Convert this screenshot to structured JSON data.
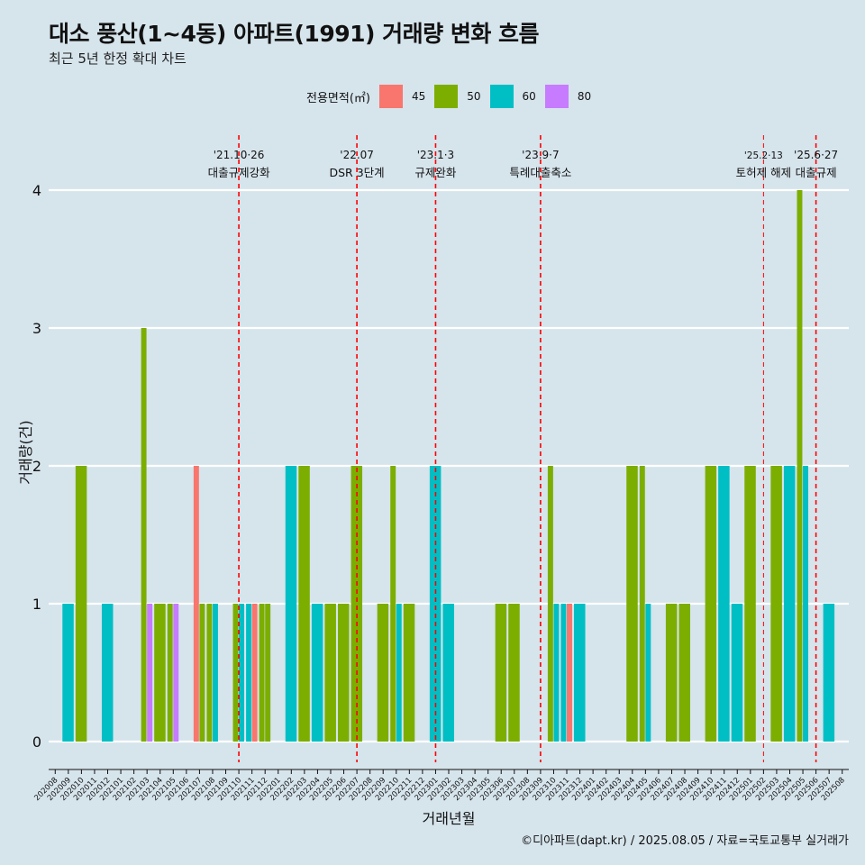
{
  "title": "대소 풍산(1~4동) 아파트(1991) 거래량 변화 흐름",
  "subtitle": "최근 5년 한정 확대 차트",
  "legend": {
    "title": "전용면적(㎡)",
    "items": [
      {
        "label": "45",
        "color": "#F8766D"
      },
      {
        "label": "50",
        "color": "#7CAE00"
      },
      {
        "label": "60",
        "color": "#00BFC4"
      },
      {
        "label": "80",
        "color": "#C77CFF"
      }
    ]
  },
  "caption": "©디아파트(dapt.kr) / 2025.08.05 / 자료=국토교통부 실거래가",
  "chart_data": {
    "type": "bar",
    "xlabel": "거래년월",
    "ylabel": "거래량(건)",
    "ylim": [
      0,
      4
    ],
    "yticks": [
      0,
      1,
      2,
      3,
      4
    ],
    "grid": true,
    "legend_position": "top",
    "categories": [
      "202008",
      "202009",
      "202010",
      "202011",
      "202012",
      "202101",
      "202102",
      "202103",
      "202104",
      "202105",
      "202106",
      "202107",
      "202108",
      "202109",
      "202110",
      "202111",
      "202112",
      "202201",
      "202202",
      "202203",
      "202204",
      "202205",
      "202206",
      "202207",
      "202208",
      "202209",
      "202210",
      "202211",
      "202212",
      "202301",
      "202302",
      "202303",
      "202304",
      "202305",
      "202306",
      "202307",
      "202308",
      "202309",
      "202310",
      "202311",
      "202312",
      "202401",
      "202402",
      "202403",
      "202404",
      "202405",
      "202406",
      "202407",
      "202408",
      "202409",
      "202410",
      "202411",
      "202412",
      "202501",
      "202502",
      "202503",
      "202504",
      "202505",
      "202506",
      "202507",
      "202508"
    ],
    "bars": [
      {
        "month": "202009",
        "area": "60",
        "value": 1
      },
      {
        "month": "202010",
        "area": "50",
        "value": 2
      },
      {
        "month": "202012",
        "area": "60",
        "value": 1
      },
      {
        "month": "202103",
        "area": "50",
        "value": 3
      },
      {
        "month": "202103",
        "area": "80",
        "value": 1
      },
      {
        "month": "202104",
        "area": "50",
        "value": 1
      },
      {
        "month": "202105",
        "area": "50",
        "value": 1
      },
      {
        "month": "202105",
        "area": "80",
        "value": 1
      },
      {
        "month": "202107",
        "area": "45",
        "value": 2
      },
      {
        "month": "202107",
        "area": "50",
        "value": 1
      },
      {
        "month": "202108",
        "area": "50",
        "value": 1
      },
      {
        "month": "202108",
        "area": "60",
        "value": 1
      },
      {
        "month": "202110",
        "area": "50",
        "value": 1
      },
      {
        "month": "202110",
        "area": "60",
        "value": 1
      },
      {
        "month": "202111",
        "area": "60",
        "value": 1
      },
      {
        "month": "202111",
        "area": "45",
        "value": 1
      },
      {
        "month": "202112",
        "area": "50",
        "value": 1
      },
      {
        "month": "202112",
        "area": "50",
        "value": 1
      },
      {
        "month": "202202",
        "area": "60",
        "value": 2
      },
      {
        "month": "202203",
        "area": "50",
        "value": 2
      },
      {
        "month": "202204",
        "area": "60",
        "value": 1
      },
      {
        "month": "202205",
        "area": "50",
        "value": 1
      },
      {
        "month": "202206",
        "area": "50",
        "value": 1
      },
      {
        "month": "202207",
        "area": "50",
        "value": 2
      },
      {
        "month": "202209",
        "area": "50",
        "value": 1
      },
      {
        "month": "202210",
        "area": "50",
        "value": 2
      },
      {
        "month": "202210",
        "area": "60",
        "value": 1
      },
      {
        "month": "202211",
        "area": "50",
        "value": 1
      },
      {
        "month": "202301",
        "area": "60",
        "value": 2
      },
      {
        "month": "202302",
        "area": "60",
        "value": 1
      },
      {
        "month": "202306",
        "area": "50",
        "value": 1
      },
      {
        "month": "202307",
        "area": "50",
        "value": 1
      },
      {
        "month": "202310",
        "area": "50",
        "value": 2
      },
      {
        "month": "202310",
        "area": "60",
        "value": 1
      },
      {
        "month": "202311",
        "area": "60",
        "value": 1
      },
      {
        "month": "202311",
        "area": "45",
        "value": 1
      },
      {
        "month": "202312",
        "area": "60",
        "value": 1
      },
      {
        "month": "202404",
        "area": "50",
        "value": 2
      },
      {
        "month": "202405",
        "area": "50",
        "value": 2
      },
      {
        "month": "202405",
        "area": "60",
        "value": 1
      },
      {
        "month": "202407",
        "area": "50",
        "value": 1
      },
      {
        "month": "202408",
        "area": "50",
        "value": 1
      },
      {
        "month": "202410",
        "area": "50",
        "value": 2
      },
      {
        "month": "202411",
        "area": "60",
        "value": 2
      },
      {
        "month": "202412",
        "area": "60",
        "value": 1
      },
      {
        "month": "202501",
        "area": "50",
        "value": 2
      },
      {
        "month": "202503",
        "area": "50",
        "value": 2
      },
      {
        "month": "202504",
        "area": "60",
        "value": 2
      },
      {
        "month": "202505",
        "area": "50",
        "value": 4
      },
      {
        "month": "202505",
        "area": "60",
        "value": 2
      },
      {
        "month": "202507",
        "area": "60",
        "value": 1
      }
    ],
    "annotations": [
      {
        "month": "202110",
        "date": "'21.10·26",
        "label": "대출규제강화",
        "style": "thick"
      },
      {
        "month": "202207",
        "date": "'22.07",
        "label": "DSR 3단계",
        "style": "thick"
      },
      {
        "month": "202301",
        "date": "'23.1·3",
        "label": "규제완화",
        "style": "thick"
      },
      {
        "month": "202309",
        "date": "'23.9·7",
        "label": "특례대출축소",
        "style": "thick"
      },
      {
        "month": "202502",
        "date": "'25.2·13",
        "label": "토허제 해제",
        "style": "thin"
      },
      {
        "month": "202506",
        "date": "'25.6·27",
        "label": "대출규제",
        "style": "thick"
      }
    ]
  }
}
